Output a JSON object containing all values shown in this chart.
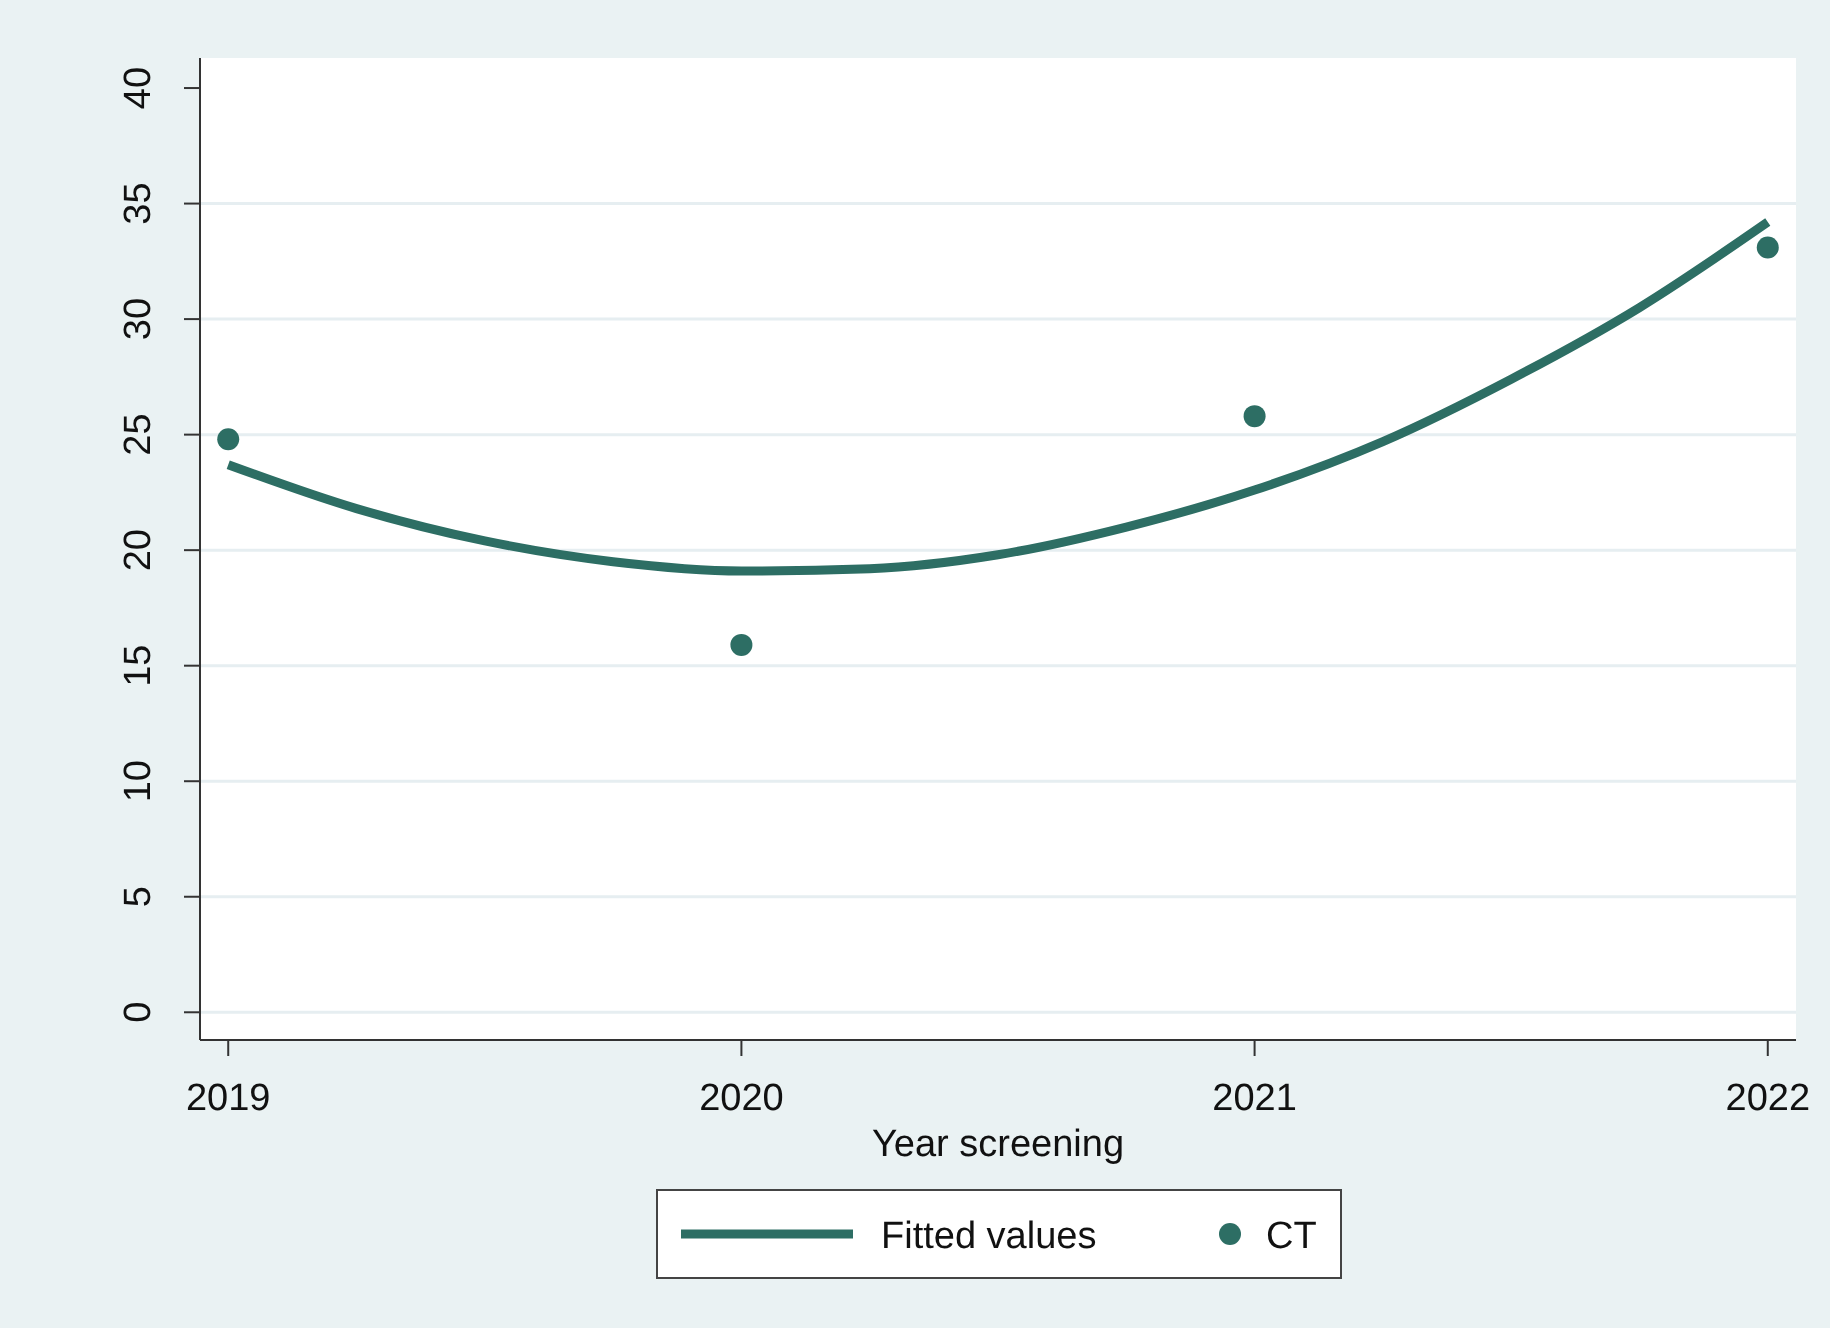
{
  "chart_data": {
    "type": "scatter",
    "xlabel": "Year screening",
    "xlim": [
      2018.945,
      2022.055
    ],
    "xticks": [
      2019,
      2020,
      2021,
      2022
    ],
    "ylim": [
      -1.2,
      41.3
    ],
    "yticks": [
      0,
      5,
      10,
      15,
      20,
      25,
      30,
      35,
      40
    ],
    "grid": "y",
    "legend": "bottom",
    "series": [
      {
        "name": "Fitted values",
        "type": "line",
        "color": "#2d6e64",
        "line_style": "solid",
        "marker": "none",
        "x": [
          2019,
          2019.25,
          2019.5,
          2019.75,
          2020,
          2020.25,
          2020.5,
          2020.75,
          2021,
          2021.25,
          2021.5,
          2021.75,
          2022
        ],
        "values": [
          23.7,
          21.8,
          20.4,
          19.5,
          19.1,
          19.2,
          19.8,
          21.0,
          22.6,
          24.7,
          27.4,
          30.5,
          34.2
        ]
      },
      {
        "name": "CT",
        "marker": "circle",
        "color": "#2d6e64",
        "x": [
          2019,
          2020,
          2021,
          2022
        ],
        "values": [
          24.8,
          15.9,
          25.8,
          33.1
        ]
      }
    ]
  }
}
